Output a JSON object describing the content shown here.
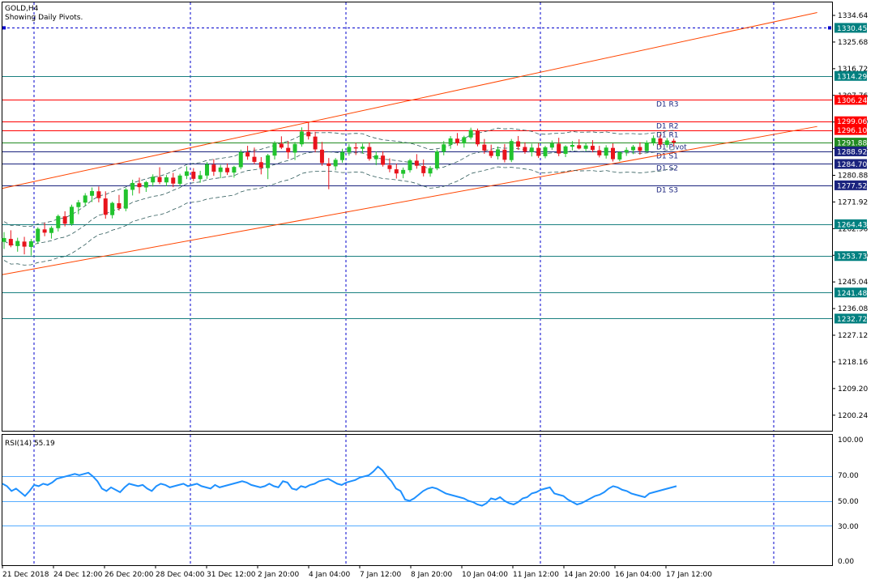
{
  "header": {
    "symbol_label": "GOLD,H4",
    "indicator_label": "Showing Daily Pivots."
  },
  "rsi": {
    "label": "RSI(14) 55.19",
    "scale_labels": [
      "100.00",
      "70.00",
      "50.00",
      "30.00",
      "0.00"
    ]
  },
  "colors": {
    "bull": "#22c32e",
    "bear": "#e8141c",
    "channel": "#ff4500",
    "resistance": "#ff0000",
    "support": "#1a237e",
    "pivot": "#228b22",
    "hline": "#1a8080",
    "rsi_line": "#1e90ff",
    "grid_vertical": "#0000cd",
    "badge_dark": "#008080"
  },
  "chart_data": [
    {
      "type": "candlestick",
      "title": "GOLD,H4",
      "subtitle": "Showing Daily Pivots.",
      "ylim": [
        1195,
        1339
      ],
      "price_ticks": [
        "1334.64",
        "1325.68",
        "1316.72",
        "1307.76",
        "1298.80",
        "1289.84",
        "1280.88",
        "1271.92",
        "1262.96",
        "1254.00",
        "1245.04",
        "1236.08",
        "1227.12",
        "1218.16",
        "1209.20",
        "1200.24"
      ],
      "time_labels": [
        "21 Dec 2018",
        "24 Dec 12:00",
        "26 Dec 20:00",
        "28 Dec 04:00",
        "31 Dec 12:00",
        "2 Jan 20:00",
        "4 Jan 04:00",
        "7 Jan 12:00",
        "8 Jan 20:00",
        "10 Jan 04:00",
        "11 Jan 12:00",
        "14 Jan 20:00",
        "16 Jan 04:00",
        "17 Jan 12:00"
      ],
      "ohlc": [
        [
          1258.5,
          1261.8,
          1256.1,
          1259.8
        ],
        [
          1259.5,
          1262.4,
          1256.7,
          1257.3
        ],
        [
          1257.1,
          1259.9,
          1255.2,
          1258.8
        ],
        [
          1258.6,
          1260.2,
          1254.3,
          1256.9
        ],
        [
          1256.8,
          1259.5,
          1253.9,
          1258.7
        ],
        [
          1258.6,
          1263.4,
          1257.8,
          1262.9
        ],
        [
          1262.7,
          1264.9,
          1260.4,
          1261.6
        ],
        [
          1261.5,
          1263.8,
          1259.6,
          1263.2
        ],
        [
          1263.1,
          1267.7,
          1262.0,
          1267.2
        ],
        [
          1267.1,
          1268.8,
          1263.7,
          1264.6
        ],
        [
          1264.5,
          1271.0,
          1263.9,
          1270.3
        ],
        [
          1270.2,
          1272.6,
          1267.8,
          1271.8
        ],
        [
          1271.7,
          1274.9,
          1270.6,
          1274.1
        ],
        [
          1274.0,
          1276.8,
          1271.9,
          1275.6
        ],
        [
          1275.5,
          1277.1,
          1271.8,
          1273.2
        ],
        [
          1273.1,
          1275.5,
          1266.3,
          1267.6
        ],
        [
          1267.5,
          1272.0,
          1266.4,
          1271.6
        ],
        [
          1271.5,
          1274.3,
          1269.0,
          1269.8
        ],
        [
          1269.7,
          1276.6,
          1268.8,
          1276.1
        ],
        [
          1276.0,
          1279.4,
          1274.1,
          1278.3
        ],
        [
          1278.2,
          1280.1,
          1274.8,
          1276.9
        ],
        [
          1276.8,
          1279.0,
          1275.3,
          1278.6
        ],
        [
          1278.5,
          1281.2,
          1277.1,
          1280.4
        ],
        [
          1280.3,
          1283.6,
          1277.9,
          1278.6
        ],
        [
          1278.5,
          1281.0,
          1277.2,
          1280.2
        ],
        [
          1280.1,
          1281.7,
          1276.9,
          1278.1
        ],
        [
          1278.0,
          1281.4,
          1277.2,
          1280.8
        ],
        [
          1280.7,
          1283.9,
          1279.6,
          1282.2
        ],
        [
          1282.1,
          1283.3,
          1278.9,
          1279.7
        ],
        [
          1279.6,
          1282.4,
          1278.4,
          1280.9
        ],
        [
          1280.8,
          1285.3,
          1279.7,
          1284.6
        ],
        [
          1284.5,
          1286.3,
          1280.7,
          1282.1
        ],
        [
          1282.0,
          1284.4,
          1279.9,
          1283.5
        ],
        [
          1283.4,
          1284.9,
          1281.0,
          1281.9
        ],
        [
          1281.8,
          1284.1,
          1280.1,
          1283.7
        ],
        [
          1283.6,
          1289.5,
          1282.9,
          1288.7
        ],
        [
          1288.6,
          1290.8,
          1286.1,
          1287.2
        ],
        [
          1287.1,
          1290.2,
          1284.6,
          1285.4
        ],
        [
          1285.3,
          1287.0,
          1281.2,
          1283.4
        ],
        [
          1283.3,
          1288.1,
          1279.6,
          1287.6
        ],
        [
          1287.5,
          1292.4,
          1286.2,
          1291.6
        ],
        [
          1291.5,
          1294.0,
          1289.7,
          1290.2
        ],
        [
          1290.1,
          1292.4,
          1286.4,
          1288.6
        ],
        [
          1288.5,
          1292.1,
          1286.0,
          1291.4
        ],
        [
          1291.3,
          1297.0,
          1290.5,
          1295.6
        ],
        [
          1295.5,
          1298.6,
          1292.9,
          1294.0
        ],
        [
          1293.9,
          1295.5,
          1288.6,
          1289.6
        ],
        [
          1289.5,
          1292.1,
          1284.1,
          1285.0
        ],
        [
          1284.9,
          1286.7,
          1276.2,
          1284.0
        ],
        [
          1283.9,
          1286.7,
          1282.6,
          1286.1
        ],
        [
          1286.0,
          1289.8,
          1285.1,
          1288.7
        ],
        [
          1288.6,
          1291.4,
          1287.5,
          1290.4
        ],
        [
          1290.3,
          1291.8,
          1287.7,
          1289.9
        ],
        [
          1289.8,
          1291.5,
          1288.2,
          1290.5
        ],
        [
          1290.4,
          1291.9,
          1285.8,
          1286.4
        ],
        [
          1286.3,
          1288.9,
          1284.3,
          1287.6
        ],
        [
          1287.5,
          1289.0,
          1283.8,
          1284.4
        ],
        [
          1284.3,
          1286.6,
          1281.9,
          1283.0
        ],
        [
          1282.9,
          1284.8,
          1279.8,
          1281.5
        ],
        [
          1281.4,
          1283.5,
          1279.9,
          1282.7
        ],
        [
          1282.6,
          1286.4,
          1281.8,
          1285.9
        ],
        [
          1285.8,
          1288.0,
          1283.1,
          1284.1
        ],
        [
          1284.0,
          1286.2,
          1280.5,
          1281.6
        ],
        [
          1281.5,
          1284.0,
          1280.4,
          1283.3
        ],
        [
          1283.2,
          1289.5,
          1282.6,
          1288.9
        ],
        [
          1288.8,
          1292.4,
          1287.6,
          1291.3
        ],
        [
          1291.2,
          1294.1,
          1289.8,
          1293.3
        ],
        [
          1293.2,
          1295.1,
          1290.9,
          1291.7
        ],
        [
          1291.6,
          1294.2,
          1290.2,
          1293.7
        ],
        [
          1293.6,
          1296.9,
          1292.9,
          1296.1
        ],
        [
          1296.0,
          1296.6,
          1290.6,
          1291.3
        ],
        [
          1291.2,
          1293.1,
          1288.1,
          1289.2
        ],
        [
          1289.1,
          1291.2,
          1286.7,
          1287.4
        ],
        [
          1287.3,
          1290.6,
          1286.2,
          1289.6
        ],
        [
          1289.5,
          1291.4,
          1285.2,
          1286.1
        ],
        [
          1286.0,
          1293.1,
          1285.3,
          1292.4
        ],
        [
          1292.3,
          1294.1,
          1289.4,
          1290.5
        ],
        [
          1290.4,
          1292.0,
          1288.1,
          1288.8
        ],
        [
          1288.7,
          1291.5,
          1287.2,
          1290.2
        ],
        [
          1290.1,
          1291.7,
          1286.7,
          1287.4
        ],
        [
          1287.3,
          1290.8,
          1286.6,
          1290.3
        ],
        [
          1290.2,
          1292.6,
          1289.4,
          1291.6
        ],
        [
          1291.5,
          1293.5,
          1287.3,
          1288.2
        ],
        [
          1288.1,
          1291.0,
          1287.0,
          1290.6
        ],
        [
          1290.5,
          1292.4,
          1289.2,
          1291.1
        ],
        [
          1291.0,
          1293.0,
          1289.6,
          1289.9
        ],
        [
          1289.8,
          1291.8,
          1288.9,
          1290.9
        ],
        [
          1290.8,
          1292.7,
          1288.6,
          1289.4
        ],
        [
          1289.3,
          1290.8,
          1286.9,
          1287.6
        ],
        [
          1287.5,
          1291.0,
          1286.5,
          1290.2
        ],
        [
          1290.1,
          1291.6,
          1285.5,
          1286.3
        ],
        [
          1286.2,
          1289.0,
          1285.6,
          1288.7
        ],
        [
          1288.6,
          1290.3,
          1287.4,
          1289.4
        ],
        [
          1289.3,
          1291.1,
          1288.0,
          1290.5
        ],
        [
          1290.4,
          1292.0,
          1287.8,
          1289.1
        ],
        [
          1289.0,
          1292.6,
          1288.5,
          1291.9
        ],
        [
          1291.8,
          1294.3,
          1290.9,
          1293.4
        ],
        [
          1293.3,
          1294.6,
          1290.4,
          1291.2
        ],
        [
          1291.1,
          1293.4,
          1290.2,
          1292.6
        ],
        [
          1292.5,
          1293.2,
          1290.6,
          1291.9
        ]
      ],
      "channel_lines": [
        {
          "name": "upper",
          "from": [
            0,
            1276.5
          ],
          "to": [
            119,
            1335.6
          ]
        },
        {
          "name": "lower",
          "from": [
            0,
            1247.5
          ],
          "to": [
            119,
            1297.3
          ]
        }
      ],
      "pivot_levels": [
        {
          "label": "D1 R3",
          "value": 1306.24,
          "badge": "1306.24",
          "kind": "resistance"
        },
        {
          "label": "D1 R2",
          "value": 1299.06,
          "badge": "1299.06",
          "kind": "resistance"
        },
        {
          "label": "D1 R1",
          "value": 1296.1,
          "badge": "1296.10",
          "kind": "resistance"
        },
        {
          "label": "D1 Pivot",
          "value": 1291.88,
          "badge": "1291.88",
          "kind": "pivot"
        },
        {
          "label": "D1 S1",
          "value": 1288.92,
          "badge": "1288.92",
          "kind": "support"
        },
        {
          "label": "D1 S2",
          "value": 1284.7,
          "badge": "1284.70",
          "kind": "support"
        },
        {
          "label": "D1 S3",
          "value": 1277.52,
          "badge": "1277.52",
          "kind": "support"
        }
      ],
      "hlines": [
        {
          "value": 1330.45,
          "badge": "1330.45",
          "style": "dotted"
        },
        {
          "value": 1314.29,
          "badge": "1314.29",
          "style": "solid"
        },
        {
          "value": 1264.43,
          "badge": "1264.43",
          "style": "solid"
        },
        {
          "value": 1253.73,
          "badge": "1253.73",
          "style": "solid"
        },
        {
          "value": 1241.48,
          "badge": "1241.48",
          "style": "solid"
        },
        {
          "value": 1232.72,
          "badge": "1232.72",
          "style": "solid"
        }
      ]
    },
    {
      "type": "line",
      "title": "RSI(14) 55.19",
      "ylim": [
        0,
        100
      ],
      "levels": [
        70,
        50,
        30
      ],
      "values": [
        64,
        62,
        58,
        60,
        57,
        54,
        58,
        63,
        62,
        64,
        63,
        65,
        68,
        69,
        70,
        71,
        72,
        71,
        72,
        73,
        70,
        66,
        60,
        58,
        61,
        59,
        57,
        61,
        64,
        63,
        62,
        63,
        60,
        58,
        62,
        64,
        63,
        61,
        62,
        63,
        64,
        62,
        63,
        64,
        62,
        61,
        60,
        63,
        61,
        62,
        63,
        64,
        65,
        66,
        65,
        63,
        62,
        61,
        62,
        64,
        62,
        61,
        66,
        65,
        60,
        59,
        62,
        61,
        63,
        64,
        66,
        67,
        68,
        66,
        64,
        63,
        65,
        66,
        67,
        69,
        70,
        71,
        74,
        78,
        75,
        70,
        66,
        60,
        58,
        51,
        50,
        52,
        55,
        58,
        60,
        61,
        60,
        58,
        56,
        55,
        54,
        53,
        52,
        50,
        49,
        47,
        46,
        48,
        52,
        51,
        53,
        50,
        48,
        47,
        49,
        52,
        53,
        56,
        57,
        59,
        60,
        61,
        56,
        55,
        54,
        51,
        49,
        47,
        48,
        50,
        52,
        54,
        55,
        57,
        60,
        62,
        61,
        59,
        58,
        56,
        55,
        54,
        53,
        56,
        57,
        58,
        59,
        60,
        61,
        62
      ]
    }
  ]
}
